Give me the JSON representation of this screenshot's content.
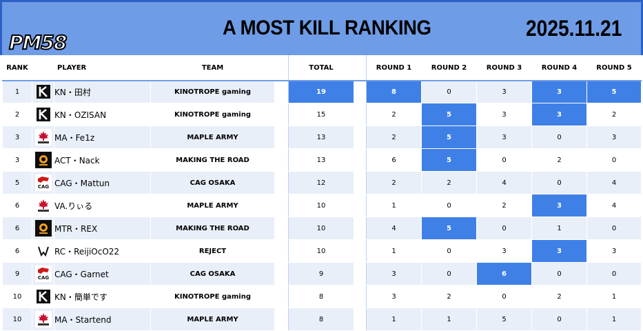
{
  "header": {
    "logo_text": "PM58",
    "title": "A  MOST KILL RANKING",
    "date": "2025.11.21"
  },
  "columns": {
    "rank": "RANK",
    "player": "PLAYER",
    "team": "TEAM",
    "total": "TOTAL",
    "round1": "ROUND 1",
    "round2": "ROUND 2",
    "round3": "ROUND 3",
    "round4": "ROUND 4",
    "round5": "ROUND 5"
  },
  "rows": [
    {
      "rank": "1",
      "logo": "kinotrope-icon",
      "player": "KN・田村",
      "team": "KINOTROPE gaming",
      "total": "19",
      "r1": "8",
      "r2": "0",
      "r3": "3",
      "r4": "3",
      "r5": "5",
      "hl": [
        true,
        true,
        false,
        false,
        true,
        true
      ]
    },
    {
      "rank": "2",
      "logo": "kinotrope-icon",
      "player": "KN・OZISAN",
      "team": "KINOTROPE gaming",
      "total": "15",
      "r1": "2",
      "r2": "5",
      "r3": "3",
      "r4": "3",
      "r5": "2",
      "hl": [
        false,
        false,
        true,
        false,
        true,
        false
      ]
    },
    {
      "rank": "3",
      "logo": "maple-army-icon",
      "player": "MA・Fe1z",
      "team": "MAPLE ARMY",
      "total": "13",
      "r1": "2",
      "r2": "5",
      "r3": "3",
      "r4": "0",
      "r5": "3",
      "hl": [
        false,
        false,
        true,
        false,
        false,
        false
      ]
    },
    {
      "rank": "3",
      "logo": "making-the-road-icon",
      "player": "ACT・Nack",
      "team": "MAKING THE ROAD",
      "total": "13",
      "r1": "6",
      "r2": "5",
      "r3": "0",
      "r4": "2",
      "r5": "0",
      "hl": [
        false,
        false,
        true,
        false,
        false,
        false
      ]
    },
    {
      "rank": "5",
      "logo": "cag-icon",
      "player": "CAG・Mattun",
      "team": "CAG OSAKA",
      "total": "12",
      "r1": "2",
      "r2": "2",
      "r3": "4",
      "r4": "0",
      "r5": "4",
      "hl": [
        false,
        false,
        false,
        false,
        false,
        false
      ]
    },
    {
      "rank": "6",
      "logo": "maple-army-icon",
      "player": "VA.りぃる",
      "team": "MAPLE ARMY",
      "total": "10",
      "r1": "1",
      "r2": "0",
      "r3": "2",
      "r4": "3",
      "r5": "4",
      "hl": [
        false,
        false,
        false,
        false,
        true,
        false
      ]
    },
    {
      "rank": "6",
      "logo": "making-the-road-icon",
      "player": "MTR・REX",
      "team": "MAKING THE ROAD",
      "total": "10",
      "r1": "4",
      "r2": "5",
      "r3": "0",
      "r4": "1",
      "r5": "0",
      "hl": [
        false,
        false,
        true,
        false,
        false,
        false
      ]
    },
    {
      "rank": "6",
      "logo": "reject-icon",
      "player": "RC・ReijiOcO22",
      "team": "REJECT",
      "total": "10",
      "r1": "1",
      "r2": "0",
      "r3": "3",
      "r4": "3",
      "r5": "3",
      "hl": [
        false,
        false,
        false,
        false,
        true,
        false
      ]
    },
    {
      "rank": "9",
      "logo": "cag-icon",
      "player": "CAG・Garnet",
      "team": "CAG OSAKA",
      "total": "9",
      "r1": "3",
      "r2": "0",
      "r3": "6",
      "r4": "0",
      "r5": "0",
      "hl": [
        false,
        false,
        false,
        true,
        false,
        false
      ]
    },
    {
      "rank": "10",
      "logo": "kinotrope-icon",
      "player": "KN・簡単です",
      "team": "KINOTROPE gaming",
      "total": "8",
      "r1": "3",
      "r2": "2",
      "r3": "0",
      "r4": "2",
      "r5": "1",
      "hl": [
        false,
        false,
        false,
        false,
        false,
        false
      ]
    },
    {
      "rank": "10",
      "logo": "maple-army-icon",
      "player": "MA・Startend",
      "team": "MAPLE ARMY",
      "total": "8",
      "r1": "1",
      "r2": "1",
      "r3": "5",
      "r4": "0",
      "r5": "1",
      "hl": [
        false,
        false,
        false,
        false,
        false,
        false
      ]
    }
  ],
  "colors": {
    "header_bg": "#6f9ce6",
    "highlight": "#3f80e6",
    "row_alt": "#e9eff9"
  }
}
